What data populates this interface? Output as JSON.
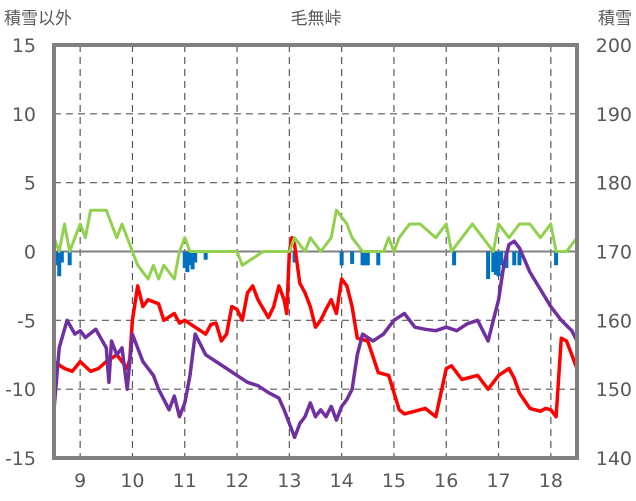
{
  "chart_data": {
    "type": "line",
    "title": "毛無峠",
    "y_left_label": "積雪以外",
    "y_right_label": "積雪",
    "y_left_lim": [
      -15,
      15
    ],
    "y_right_lim": [
      140,
      200
    ],
    "y_left_ticks": [
      "15",
      "10",
      "5",
      "0",
      "-5",
      "-10",
      "-15"
    ],
    "y_right_ticks": [
      "200",
      "190",
      "180",
      "170",
      "160",
      "150",
      "140"
    ],
    "x_lim": [
      8.5,
      18.5
    ],
    "x_ticks": [
      "9",
      "10",
      "11",
      "12",
      "13",
      "14",
      "15",
      "16",
      "17",
      "18"
    ],
    "grid": true,
    "legend": "none",
    "colors": {
      "temperature": "#ff0000",
      "wind": "#92d050",
      "snow_depth": "#7030a0",
      "precipitation": "#0070c0",
      "axis": "#808080",
      "grid": "#595959"
    },
    "series": [
      {
        "key": "temperature",
        "axis": "left",
        "x": [
          8.5,
          8.7,
          8.85,
          9.0,
          9.2,
          9.35,
          9.5,
          9.7,
          9.8,
          9.9,
          9.95,
          10.0,
          10.1,
          10.2,
          10.3,
          10.5,
          10.6,
          10.8,
          10.9,
          11.0,
          11.2,
          11.4,
          11.5,
          11.6,
          11.7,
          11.8,
          11.9,
          12.0,
          12.1,
          12.2,
          12.3,
          12.4,
          12.6,
          12.7,
          12.8,
          12.9,
          12.95,
          13.0,
          13.05,
          13.1,
          13.2,
          13.3,
          13.4,
          13.5,
          13.6,
          13.7,
          13.8,
          13.9,
          14.0,
          14.1,
          14.2,
          14.3,
          14.5,
          14.7,
          14.9,
          15.1,
          15.2,
          15.4,
          15.6,
          15.8,
          16.0,
          16.1,
          16.3,
          16.6,
          16.8,
          17.0,
          17.2,
          17.3,
          17.4,
          17.6,
          17.8,
          17.9,
          18.0,
          18.1,
          18.2,
          18.3,
          18.5
        ],
        "values": [
          -8,
          -8.5,
          -8.7,
          -8,
          -8.7,
          -8.5,
          -8,
          -7.5,
          -8,
          -8.5,
          -7.8,
          -5,
          -2.5,
          -4,
          -3.5,
          -3.8,
          -5,
          -4.5,
          -5.2,
          -5,
          -5.5,
          -6,
          -5.3,
          -5.2,
          -6.5,
          -6,
          -4,
          -4.2,
          -5,
          -3,
          -2.5,
          -3.5,
          -4.8,
          -4,
          -2.5,
          -3.5,
          -4.5,
          0,
          1,
          0.5,
          -2.3,
          -3,
          -4,
          -5.5,
          -5,
          -4.2,
          -3.5,
          -4.5,
          -2,
          -2.5,
          -4,
          -6.3,
          -6.5,
          -8.8,
          -9,
          -11.5,
          -11.8,
          -11.6,
          -11.4,
          -12,
          -8.5,
          -8.3,
          -9.3,
          -9,
          -10,
          -9,
          -8.5,
          -9.2,
          -10.3,
          -11.4,
          -11.6,
          -11.4,
          -11.5,
          -12,
          -6.3,
          -6.5,
          -8.5
        ]
      },
      {
        "key": "wind",
        "axis": "left",
        "x": [
          8.5,
          8.6,
          8.7,
          8.8,
          8.9,
          9.0,
          9.1,
          9.2,
          9.5,
          9.6,
          9.7,
          9.8,
          9.9,
          10.0,
          10.1,
          10.3,
          10.4,
          10.5,
          10.6,
          10.8,
          10.9,
          11.0,
          11.1,
          11.3,
          11.5,
          12.0,
          12.1,
          12.5,
          12.9,
          13.0,
          13.1,
          13.3,
          13.4,
          13.6,
          13.8,
          13.9,
          14.1,
          14.2,
          14.4,
          14.5,
          14.6,
          14.8,
          14.9,
          15.0,
          15.1,
          15.3,
          15.5,
          15.8,
          16.0,
          16.1,
          16.3,
          16.5,
          16.7,
          16.9,
          17.0,
          17.2,
          17.4,
          17.6,
          17.8,
          18.0,
          18.1,
          18.2,
          18.3,
          18.5
        ],
        "values": [
          1,
          0,
          2,
          0,
          1,
          2,
          1,
          3,
          3,
          2,
          1,
          2,
          1,
          0,
          -1,
          -2,
          -1,
          -2,
          -1,
          -2,
          0,
          1,
          0,
          0,
          0,
          0,
          -1,
          0,
          0,
          0,
          1,
          0,
          1,
          0,
          1,
          3,
          2,
          1,
          0,
          0,
          0,
          0,
          1,
          0,
          1,
          2,
          2,
          1,
          2,
          0,
          1,
          2,
          1,
          0,
          2,
          1,
          2,
          2,
          1,
          2,
          0,
          0,
          0,
          1
        ]
      },
      {
        "key": "snow_depth",
        "axis": "right",
        "x": [
          8.5,
          8.6,
          8.75,
          8.9,
          9.0,
          9.1,
          9.3,
          9.5,
          9.55,
          9.6,
          9.7,
          9.8,
          9.9,
          10.0,
          10.2,
          10.4,
          10.5,
          10.7,
          10.8,
          10.9,
          11.0,
          11.1,
          11.2,
          11.4,
          11.6,
          11.8,
          12.0,
          12.2,
          12.4,
          12.6,
          12.8,
          12.9,
          13.0,
          13.1,
          13.2,
          13.3,
          13.4,
          13.5,
          13.6,
          13.7,
          13.8,
          13.9,
          14.0,
          14.1,
          14.2,
          14.3,
          14.4,
          14.6,
          14.8,
          15.0,
          15.2,
          15.4,
          15.6,
          15.8,
          16.0,
          16.2,
          16.4,
          16.6,
          16.8,
          16.9,
          17.0,
          17.1,
          17.2,
          17.3,
          17.4,
          17.6,
          17.8,
          18.0,
          18.2,
          18.4,
          18.5
        ],
        "values": [
          147,
          156,
          160,
          158,
          158.5,
          157.5,
          158.7,
          156,
          151,
          157,
          155,
          156,
          150,
          158,
          154,
          152,
          150,
          147,
          149,
          146,
          148,
          152,
          158,
          155,
          154,
          153,
          152,
          151,
          150.5,
          149.5,
          148.7,
          147,
          145,
          143,
          145,
          146,
          148,
          146,
          147,
          146,
          147.5,
          145.5,
          147.5,
          148.5,
          150,
          155,
          158,
          157,
          158,
          160,
          161,
          159,
          158.7,
          158.5,
          159,
          158.5,
          159.5,
          160,
          157,
          160,
          163,
          168,
          171,
          171.5,
          170.5,
          167,
          164.5,
          162,
          160,
          158.5,
          157
        ]
      },
      {
        "key": "precipitation",
        "axis": "left",
        "type": "bar",
        "x": [
          8.55,
          8.6,
          8.65,
          8.8,
          11.0,
          11.05,
          11.1,
          11.15,
          11.2,
          11.4,
          13.1,
          14.0,
          14.2,
          14.4,
          14.45,
          14.5,
          14.7,
          16.15,
          16.8,
          16.9,
          16.95,
          17.0,
          17.05,
          17.15,
          17.3,
          17.4,
          18.1
        ],
        "values": [
          -1,
          -1.8,
          -0.8,
          -1.0,
          -1.2,
          -1.5,
          -1.0,
          -1.3,
          -0.8,
          -0.6,
          -0.8,
          -1.0,
          -0.9,
          -1.0,
          -1.0,
          -1.0,
          -1.0,
          -1.0,
          -2.0,
          -1.5,
          -1.7,
          -1.8,
          -1.0,
          -1.2,
          -1.0,
          -1.0,
          -1.0
        ]
      }
    ]
  }
}
